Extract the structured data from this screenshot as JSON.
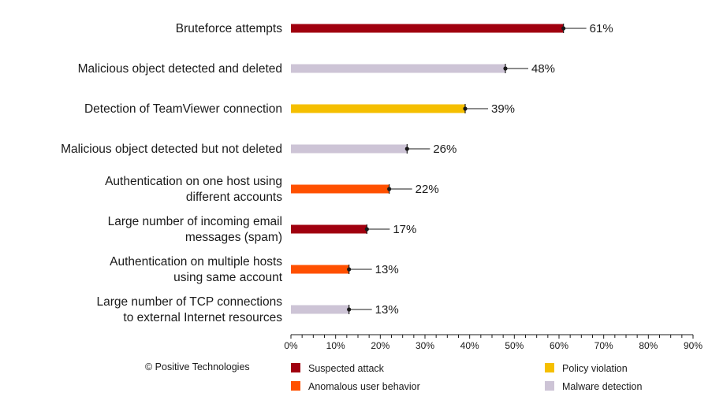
{
  "chart_data": {
    "type": "bar",
    "orientation": "horizontal",
    "categories": [
      [
        "Bruteforce attempts"
      ],
      [
        "Malicious object detected and deleted"
      ],
      [
        "Detection of TeamViewer connection"
      ],
      [
        "Malicious object detected but not deleted"
      ],
      [
        "Authentication on one host using",
        "different accounts"
      ],
      [
        "Large number of incoming email",
        "messages (spam)"
      ],
      [
        "Authentication on multiple hosts",
        "using same account"
      ],
      [
        "Large number of TCP connections",
        "to external Internet resources"
      ]
    ],
    "values": [
      61,
      48,
      39,
      26,
      22,
      17,
      13,
      13
    ],
    "value_labels": [
      "61%",
      "48%",
      "39%",
      "26%",
      "22%",
      "17%",
      "13%",
      "13%"
    ],
    "groups": [
      "suspected_attack",
      "malware_detection",
      "policy_violation",
      "malware_detection",
      "anomalous_user_behavior",
      "suspected_attack",
      "anomalous_user_behavior",
      "malware_detection"
    ],
    "xlim": [
      0,
      90
    ],
    "xticks": [
      0,
      10,
      20,
      30,
      40,
      50,
      60,
      70,
      80,
      90
    ],
    "xtick_labels": [
      "0%",
      "10%",
      "20%",
      "30%",
      "40%",
      "50%",
      "60%",
      "70%",
      "80%",
      "90%"
    ],
    "legend": [
      {
        "key": "suspected_attack",
        "label": "Suspected attack",
        "color": "#a0000f"
      },
      {
        "key": "policy_violation",
        "label": "Policy violation",
        "color": "#f5bf00"
      },
      {
        "key": "anomalous_user_behavior",
        "label": "Anomalous user behavior",
        "color": "#ff5000"
      },
      {
        "key": "malware_detection",
        "label": "Malware detection",
        "color": "#cdc4d6"
      }
    ],
    "legend_position": "bottom",
    "grid": false
  },
  "credit": "© Positive Technologies",
  "colors": {
    "axis": "#1a1a1a",
    "error_line": "#1a1a1a"
  }
}
